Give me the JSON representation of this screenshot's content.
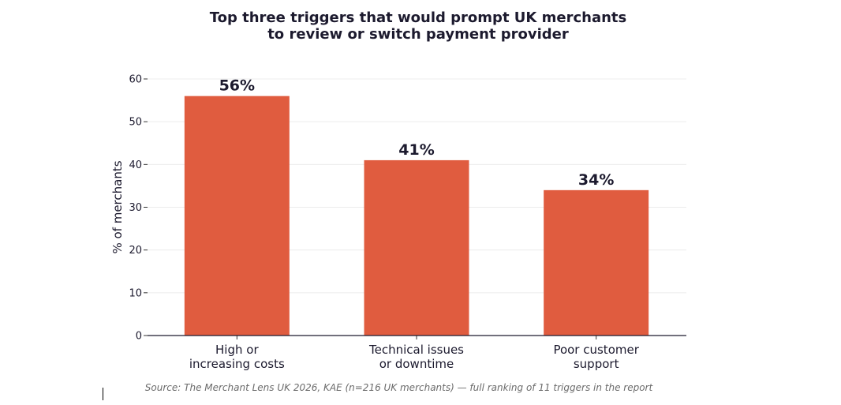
{
  "chart_data": {
    "type": "bar",
    "title": [
      "Top three triggers that would prompt UK merchants",
      "to review or switch payment provider"
    ],
    "categories": [
      [
        "High or",
        "increasing costs"
      ],
      [
        "Technical issues",
        "or downtime"
      ],
      [
        "Poor customer",
        "support"
      ]
    ],
    "values": [
      56,
      41,
      34
    ],
    "data_labels": [
      "56%",
      "41%",
      "34%"
    ],
    "ylabel": "% of merchants",
    "xlabel": "",
    "ylim": [
      0,
      60
    ],
    "yticks": [
      "0",
      "10",
      "20",
      "30",
      "40",
      "50",
      "60"
    ],
    "grid": "horizontal",
    "bar_color": "#e05c3f",
    "source": "Source: The Merchant Lens UK 2026, KAE (n=216 UK merchants) — full ranking of 11 triggers in the report"
  }
}
